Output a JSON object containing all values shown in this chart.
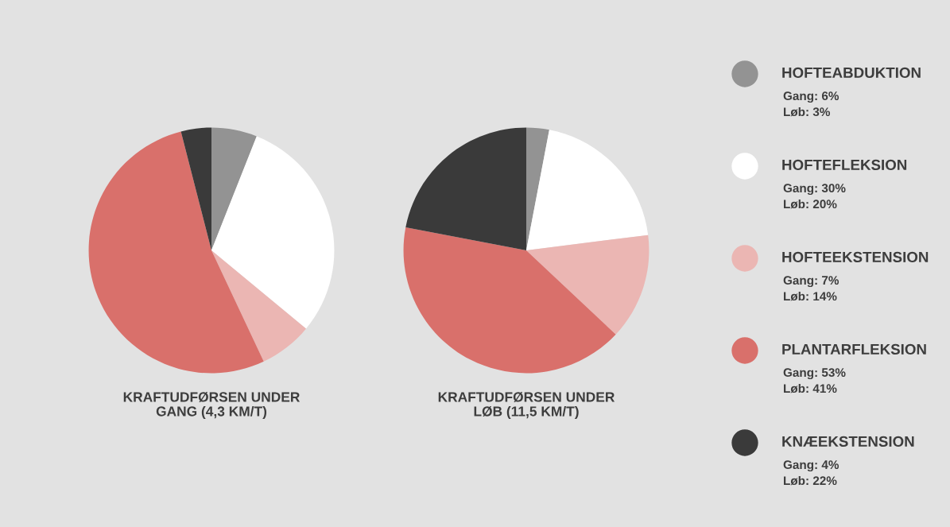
{
  "chart_data": [
    {
      "type": "pie",
      "title": "KRAFTUDFØRSEN UNDER\nGANG (4,3 KM/T)",
      "categories": [
        "HOFTEABDUKTION",
        "HOFTEFLEKSION",
        "HOFTEEKSTENSION",
        "PLANTARFLEKSION",
        "KNÆEKSTENSION"
      ],
      "colors": [
        "#939393",
        "#ffffff",
        "#ebb6b3",
        "#d9706b",
        "#3a3a3a"
      ],
      "legend": "right",
      "series": [
        {
          "name": "Gang:",
          "values": [
            6,
            30,
            7,
            53,
            4
          ],
          "value_labels": [
            "6%",
            "30%",
            "7%",
            "53%",
            "4%"
          ]
        }
      ]
    },
    {
      "type": "pie",
      "title": "KRAFTUDFØRSEN UNDER\nLØB (11,5 KM/T)",
      "colors": [
        "#939393",
        "#ffffff",
        "#ebb6b3",
        "#d9706b",
        "#3a3a3a"
      ],
      "series": [
        {
          "name": "Løb:",
          "values": [
            3,
            20,
            14,
            41,
            22
          ],
          "value_labels": [
            "3%",
            "20%",
            "14%",
            "41%",
            "22%"
          ]
        }
      ]
    }
  ]
}
